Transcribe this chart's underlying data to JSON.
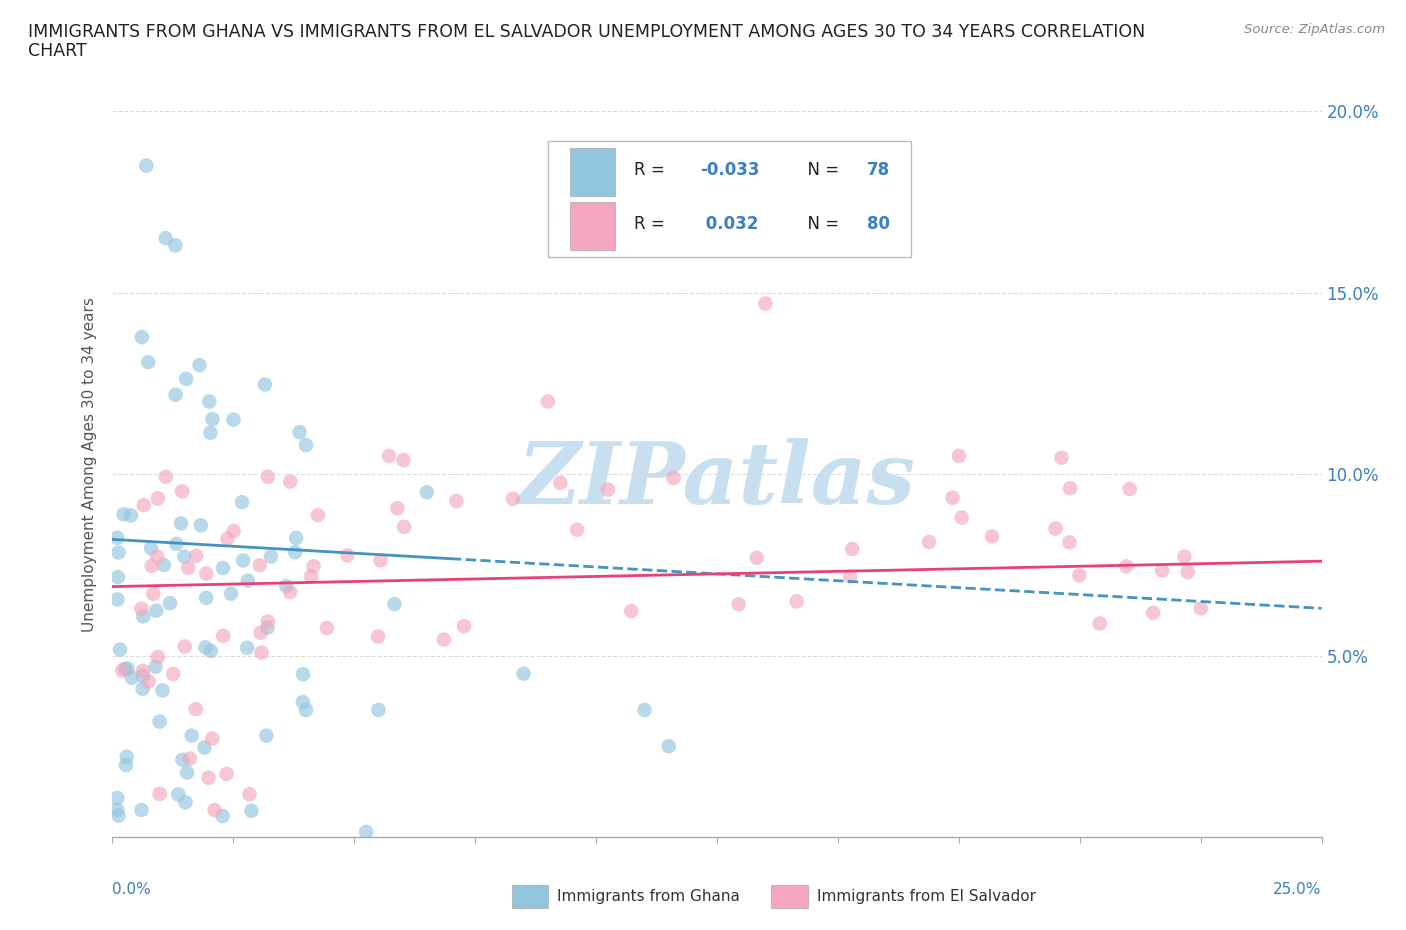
{
  "title_line1": "IMMIGRANTS FROM GHANA VS IMMIGRANTS FROM EL SALVADOR UNEMPLOYMENT AMONG AGES 30 TO 34 YEARS CORRELATION",
  "title_line2": "CHART",
  "source": "Source: ZipAtlas.com",
  "ylabel": "Unemployment Among Ages 30 to 34 years",
  "legend_label1": "Immigrants from Ghana",
  "legend_label2": "Immigrants from El Salvador",
  "R1": -0.033,
  "N1": 78,
  "R2": 0.032,
  "N2": 80,
  "color_ghana": "#92c5de",
  "color_salvador": "#f4a6be",
  "xlim": [
    0.0,
    0.25
  ],
  "ylim": [
    0.0,
    0.205
  ],
  "ytick_vals": [
    0.05,
    0.1,
    0.15,
    0.2
  ],
  "ytick_labels": [
    "5.0%",
    "10.0%",
    "15.0%",
    "20.0%"
  ],
  "xtick_vals": [
    0.0,
    0.025,
    0.05,
    0.075,
    0.1,
    0.125,
    0.15,
    0.175,
    0.2,
    0.225,
    0.25
  ],
  "watermark_text": "ZIPatlas",
  "watermark_color": "#c8dff0",
  "background_color": "#ffffff",
  "grid_color": "#dddddd",
  "trend_ghana_color": "#4393c3",
  "trend_salvador_color": "#e8417a",
  "ghana_trend_y0": 0.082,
  "ghana_trend_y1": 0.063,
  "salvador_trend_y0": 0.069,
  "salvador_trend_y1": 0.076
}
